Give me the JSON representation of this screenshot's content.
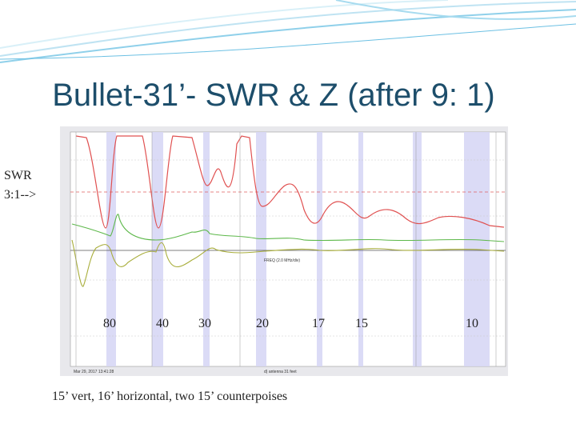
{
  "title": "Bullet-31’- SWR & Z (after 9: 1)",
  "side_label": [
    "SWR",
    "3:1-->"
  ],
  "bands": [
    "80",
    "40",
    "30",
    "20",
    "17",
    "15",
    "10"
  ],
  "caption": "15’ vert, 16’ horizontal, two 15’ counterpoises",
  "analyzer": {
    "x_axis": "FREQ (2.0 MHz/div)",
    "date": "Mar 29, 2017  13:41:28",
    "file": "d) antenna 31 feet"
  }
}
